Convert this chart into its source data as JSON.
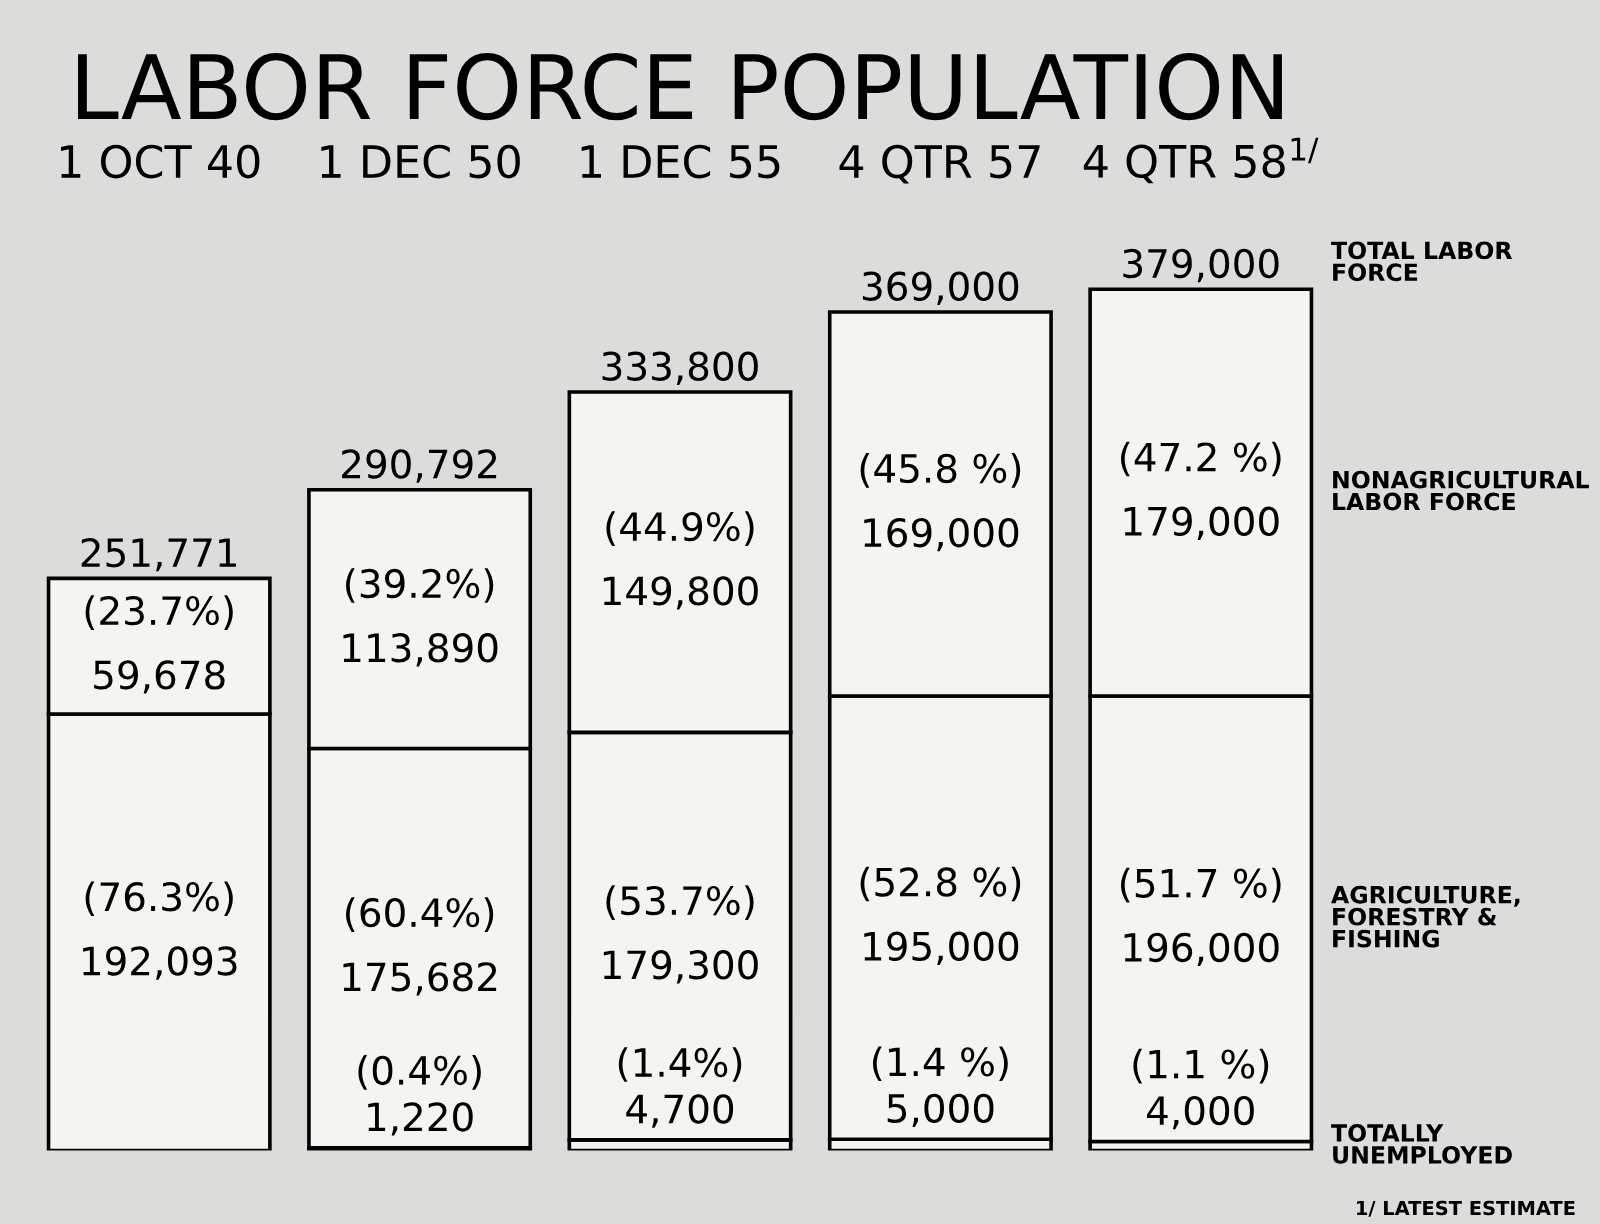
{
  "chart_data": {
    "type": "bar",
    "title": "LABOR FORCE POPULATION",
    "categories": [
      "1 OCT 40",
      "1 DEC 50",
      "1 DEC 55",
      "4 QTR 57",
      "4 QTR 58$^{1/}$"
    ],
    "stacked": true,
    "series": [
      {
        "name": "TOTALLY\nUNEMPLOYED",
        "color": "#f4f4f1",
        "values": [
          null,
          1220,
          4700,
          5000,
          4000
        ],
        "value_labels": [
          null,
          "(0.4%)\n1,220",
          "(1.4%)\n4,700",
          "(1.4 %)\n5,000",
          "(1.1 %)\n4,000"
        ]
      },
      {
        "name": "AGRICULTURE,\nFORESTRY &\nFISHING",
        "color": "#f4f4f1",
        "values": [
          192093,
          175682,
          179300,
          195000,
          196000
        ],
        "value_labels": [
          "(76.3%)\n192,093",
          "(60.4%)\n175,682",
          "(53.7%)\n179,300",
          "(52.8 %)\n195,000",
          "(51.7 %)\n196,000"
        ]
      },
      {
        "name": "NONAGRICULTURAL\nLABOR FORCE",
        "color": "#f4f4f1",
        "values": [
          59678,
          113890,
          149800,
          169000,
          179000
        ],
        "value_labels": [
          "(23.7%)\n59,678",
          "(39.2%)\n113,890",
          "(44.9%)\n149,800",
          "(45.8 %)\n169,000",
          "(47.2 %)\n179,000"
        ]
      }
    ],
    "totals": [
      "251,771",
      "290,792",
      "333,800",
      "369,000",
      "379,000"
    ],
    "tick_labels": "x",
    "annotations": [
      "TOTAL LABOR\nFORCE",
      "1/ LATEST ESTIMATE"
    ]
  }
}
